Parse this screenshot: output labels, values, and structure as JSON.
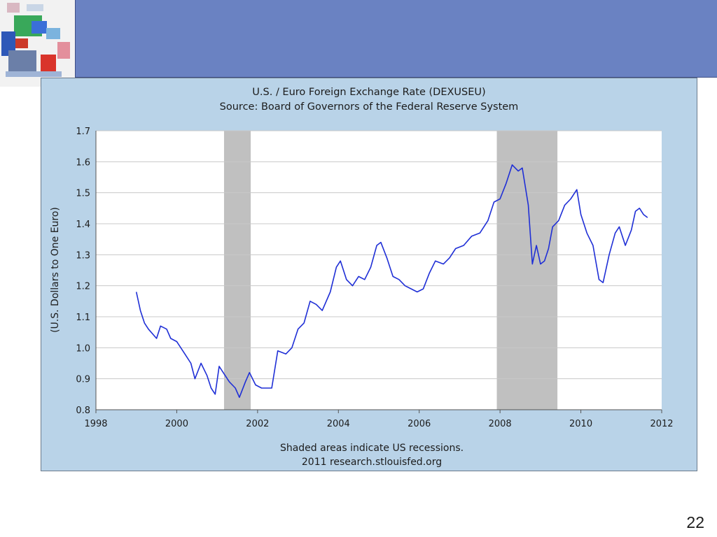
{
  "slide": {
    "page_number": "22"
  },
  "colors": {
    "header_band": "#6a82c2",
    "panel_bg": "#b9d3e8",
    "line": "#1f2fd6",
    "recession": "#c0c0c0"
  },
  "chart_data": {
    "type": "line",
    "title": "U.S. / Euro Foreign Exchange Rate (DEXUSEU)",
    "subtitle": "Source: Board of Governors of the Federal Reserve System",
    "ylabel": "(U.S. Dollars to One Euro)",
    "xlabel": "",
    "xlim": [
      1998,
      2012
    ],
    "ylim": [
      0.8,
      1.7
    ],
    "x_ticks": [
      "1998",
      "2000",
      "2002",
      "2004",
      "2006",
      "2008",
      "2010",
      "2012"
    ],
    "y_ticks": [
      "0.8",
      "0.9",
      "1.0",
      "1.1",
      "1.2",
      "1.3",
      "1.4",
      "1.5",
      "1.6",
      "1.7"
    ],
    "grid": "horizontal",
    "recessions": [
      [
        2001.17,
        2001.83
      ],
      [
        2007.92,
        2009.42
      ]
    ],
    "series": [
      {
        "x": [
          1999.0,
          1999.1,
          1999.2,
          1999.3,
          1999.5,
          1999.6,
          1999.75,
          1999.85,
          2000.0,
          2000.2,
          2000.35,
          2000.45,
          2000.6,
          2000.75,
          2000.85,
          2000.95,
          2001.05,
          2001.15,
          2001.3,
          2001.45,
          2001.55,
          2001.7,
          2001.8,
          2001.95,
          2002.1,
          2002.2,
          2002.35,
          2002.5,
          2002.7,
          2002.85,
          2003.0,
          2003.15,
          2003.3,
          2003.45,
          2003.6,
          2003.8,
          2003.95,
          2004.05,
          2004.2,
          2004.35,
          2004.5,
          2004.65,
          2004.8,
          2004.95,
          2005.05,
          2005.2,
          2005.35,
          2005.5,
          2005.65,
          2005.8,
          2005.95,
          2006.1,
          2006.25,
          2006.4,
          2006.6,
          2006.75,
          2006.9,
          2007.1,
          2007.3,
          2007.5,
          2007.7,
          2007.85,
          2008.0,
          2008.15,
          2008.3,
          2008.45,
          2008.55,
          2008.7,
          2008.8,
          2008.9,
          2009.0,
          2009.1,
          2009.2,
          2009.3,
          2009.45,
          2009.6,
          2009.75,
          2009.9,
          2010.0,
          2010.15,
          2010.3,
          2010.45,
          2010.55,
          2010.7,
          2010.85,
          2010.95,
          2011.1,
          2011.25,
          2011.35,
          2011.45,
          2011.55,
          2011.65
        ],
        "values": [
          1.18,
          1.12,
          1.08,
          1.06,
          1.03,
          1.07,
          1.06,
          1.03,
          1.02,
          0.98,
          0.95,
          0.9,
          0.95,
          0.91,
          0.87,
          0.85,
          0.94,
          0.92,
          0.89,
          0.87,
          0.84,
          0.89,
          0.92,
          0.88,
          0.87,
          0.87,
          0.87,
          0.99,
          0.98,
          1.0,
          1.06,
          1.08,
          1.15,
          1.14,
          1.12,
          1.18,
          1.26,
          1.28,
          1.22,
          1.2,
          1.23,
          1.22,
          1.26,
          1.33,
          1.34,
          1.29,
          1.23,
          1.22,
          1.2,
          1.19,
          1.18,
          1.19,
          1.24,
          1.28,
          1.27,
          1.29,
          1.32,
          1.33,
          1.36,
          1.37,
          1.41,
          1.47,
          1.48,
          1.53,
          1.59,
          1.57,
          1.58,
          1.46,
          1.27,
          1.33,
          1.27,
          1.28,
          1.32,
          1.39,
          1.41,
          1.46,
          1.48,
          1.51,
          1.43,
          1.37,
          1.33,
          1.22,
          1.21,
          1.3,
          1.37,
          1.39,
          1.33,
          1.38,
          1.44,
          1.45,
          1.43,
          1.42
        ]
      }
    ],
    "footer_note": "Shaded areas indicate US recessions.",
    "footer_source": "2011 research.stlouisfed.org"
  }
}
